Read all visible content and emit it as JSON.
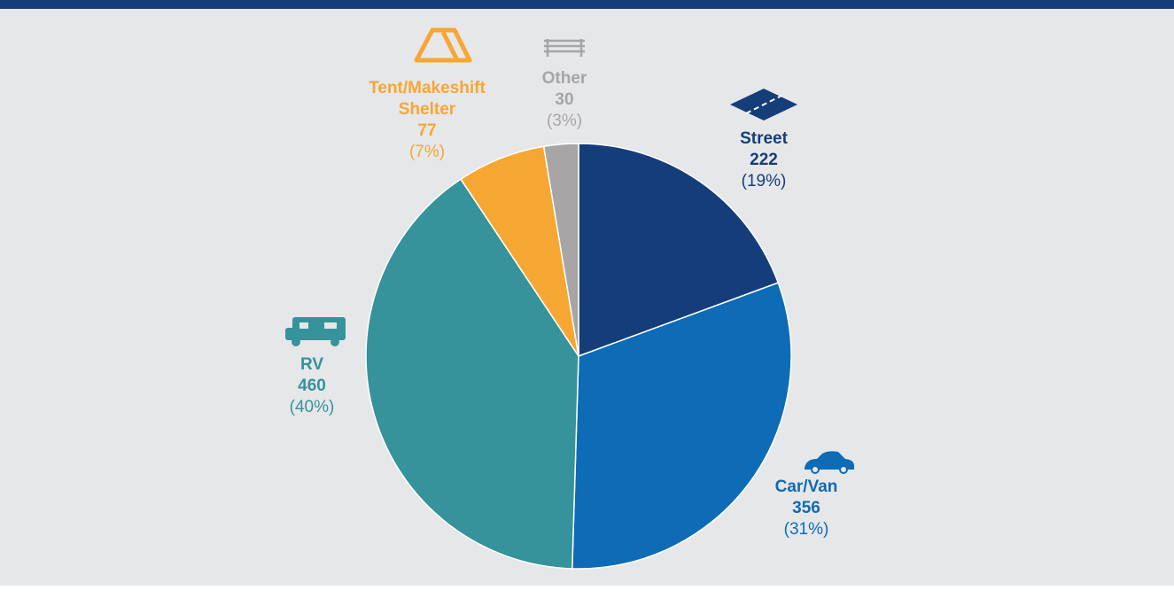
{
  "chart_data": {
    "type": "pie",
    "categories": [
      "Street",
      "Car/Van",
      "RV",
      "Tent/Makeshift Shelter",
      "Other"
    ],
    "values": [
      222,
      356,
      460,
      77,
      30
    ],
    "percent_labels": [
      "(19%)",
      "(31%)",
      "(40%)",
      "(7%)",
      "(3%)"
    ],
    "colors": [
      "#143d7a",
      "#0e6bb5",
      "#36929b",
      "#f6a733",
      "#a7a5a5"
    ]
  }
}
